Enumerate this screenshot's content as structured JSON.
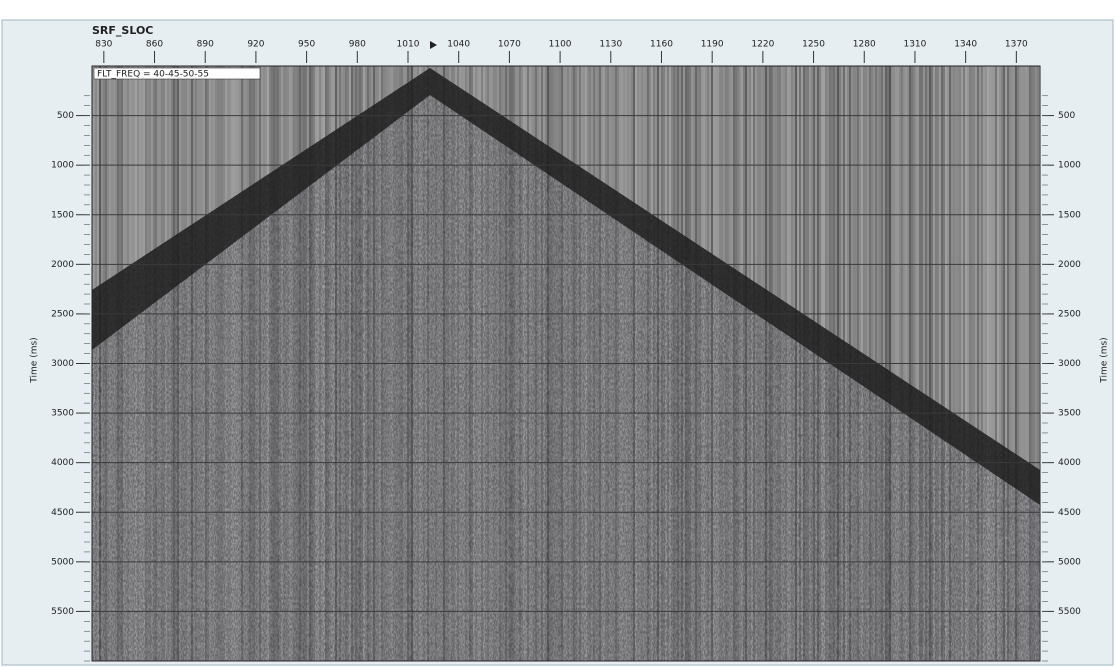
{
  "chart_data": {
    "type": "seismic",
    "xlabel": "SRF_SLOC",
    "ylabel": "Time (ms)",
    "y2label": "Time (ms)",
    "annotation": "FLT_FREQ = 40-45-50-55",
    "xlim": [
      823,
      1384
    ],
    "xticks": [
      830,
      860,
      890,
      920,
      950,
      980,
      1010,
      1040,
      1070,
      1100,
      1130,
      1160,
      1190,
      1220,
      1250,
      1280,
      1310,
      1340,
      1370
    ],
    "ylim": [
      6000,
      0
    ],
    "yticks": [
      500,
      1000,
      1500,
      2000,
      2500,
      3000,
      3500,
      4000,
      4500,
      5000,
      5500
    ],
    "y2lim": [
      6000,
      0
    ],
    "y2ticks": [
      500,
      1000,
      1500,
      2000,
      2500,
      3000,
      3500,
      4000,
      4500,
      5000,
      5500
    ],
    "grid": true
  }
}
